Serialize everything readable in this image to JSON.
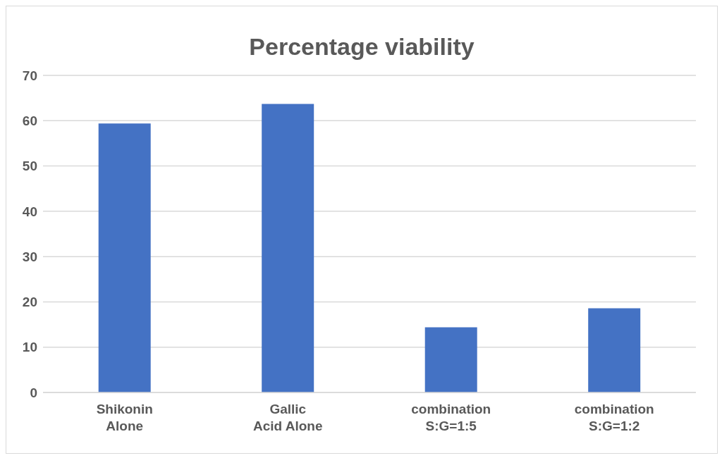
{
  "chart_data": {
    "type": "bar",
    "title": "Percentage viability",
    "categories": [
      "Shikonin Alone",
      "Gallic Acid Alone",
      "combination S:G=1:5",
      "combination S:G=1:2"
    ],
    "values": [
      59.4,
      63.7,
      14.4,
      18.6
    ],
    "color": "#4472c4",
    "ylim": [
      0,
      70
    ],
    "yticks": [
      0,
      10,
      20,
      30,
      40,
      50,
      60,
      70
    ],
    "grid": "y",
    "legend": false
  }
}
